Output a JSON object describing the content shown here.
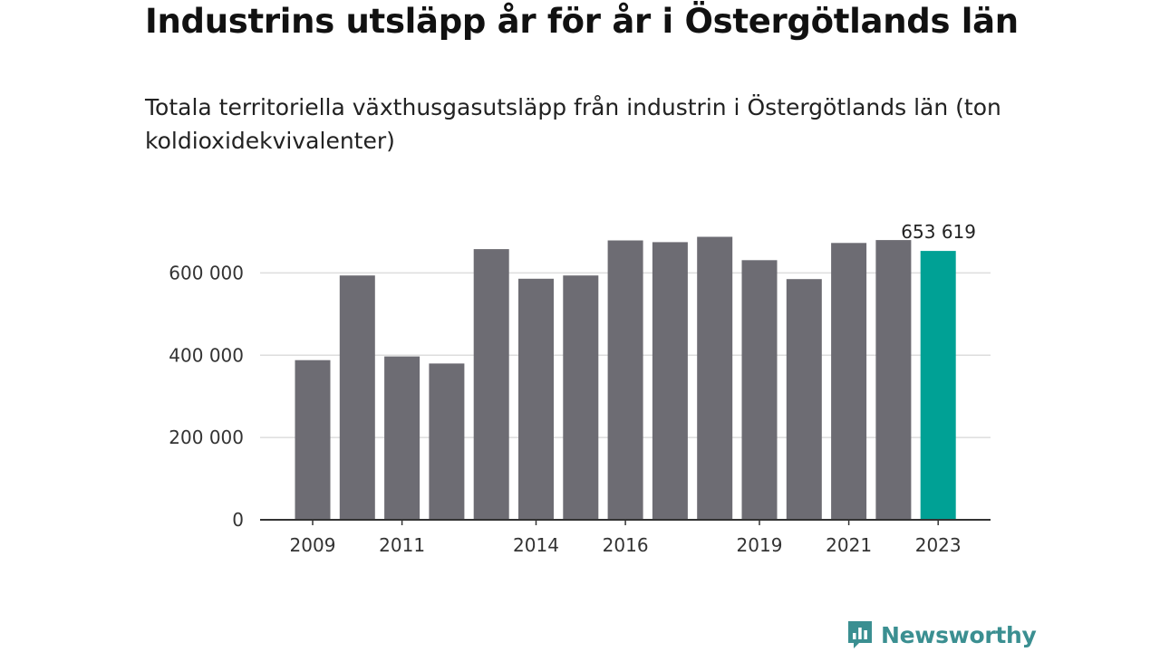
{
  "title": "Industrins utsläpp år för år i Östergötlands län",
  "subtitle": "Totala territoriella växthusgasutsläpp från industrin i Östergötlands län (ton koldioxidekvivalenter)",
  "brand": {
    "name": "Newsworthy",
    "icon": "newsworthy-logo-icon",
    "color": "#3b8f91"
  },
  "colors": {
    "bar": "#6d6c73",
    "highlight": "#00a195",
    "grid": "#dddddd",
    "axis": "#333333"
  },
  "chart_data": {
    "type": "bar",
    "title": "Industrins utsläpp år för år i Östergötlands län",
    "subtitle": "Totala territoriella växthusgasutsläpp från industrin i Östergötlands län (ton koldioxidekvivalenter)",
    "categories": [
      "2009",
      "2010",
      "2011",
      "2012",
      "2013",
      "2014",
      "2015",
      "2016",
      "2017",
      "2018",
      "2019",
      "2020",
      "2021",
      "2022",
      "2023"
    ],
    "values": [
      388000,
      594000,
      397000,
      380000,
      658000,
      586000,
      594000,
      679000,
      675000,
      688000,
      631000,
      585000,
      673000,
      680000,
      653619
    ],
    "x_tick_labels": [
      "2009",
      "2011",
      "2014",
      "2016",
      "2019",
      "2021",
      "2023"
    ],
    "y_ticks": [
      0,
      200000,
      400000,
      600000
    ],
    "y_tick_labels": [
      "0",
      "200 000",
      "400 000",
      "600 000"
    ],
    "ylim": [
      0,
      700000
    ],
    "highlight_index": 14,
    "highlight_label": "653 619",
    "xlabel": "",
    "ylabel": "",
    "grid": true
  }
}
